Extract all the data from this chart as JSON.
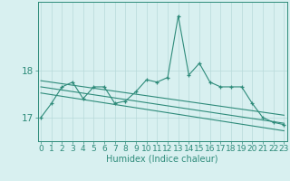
{
  "title": "",
  "xlabel": "Humidex (Indice chaleur)",
  "x_values": [
    0,
    1,
    2,
    3,
    4,
    5,
    6,
    7,
    8,
    9,
    10,
    11,
    12,
    13,
    14,
    15,
    16,
    17,
    18,
    19,
    20,
    21,
    22,
    23
  ],
  "line1_y": [
    17.0,
    17.3,
    17.65,
    17.75,
    17.4,
    17.65,
    17.65,
    17.3,
    17.35,
    17.55,
    17.8,
    17.75,
    17.85,
    19.15,
    17.9,
    18.15,
    17.75,
    17.65,
    17.65,
    17.65,
    17.3,
    17.0,
    16.9,
    16.85
  ],
  "reg_lines": [
    [
      [
        0,
        17.78
      ],
      [
        23,
        17.05
      ]
    ],
    [
      [
        0,
        17.65
      ],
      [
        23,
        16.88
      ]
    ],
    [
      [
        0,
        17.52
      ],
      [
        23,
        16.72
      ]
    ]
  ],
  "ylim": [
    16.5,
    19.45
  ],
  "yticks": [
    17,
    18
  ],
  "xticks": [
    0,
    1,
    2,
    3,
    4,
    5,
    6,
    7,
    8,
    9,
    10,
    11,
    12,
    13,
    14,
    15,
    16,
    17,
    18,
    19,
    20,
    21,
    22,
    23
  ],
  "line_color": "#2e8b7a",
  "bg_color": "#d8f0f0",
  "grid_color": "#b8dada",
  "font_size_labels": 7,
  "font_size_ticks": 6.5
}
